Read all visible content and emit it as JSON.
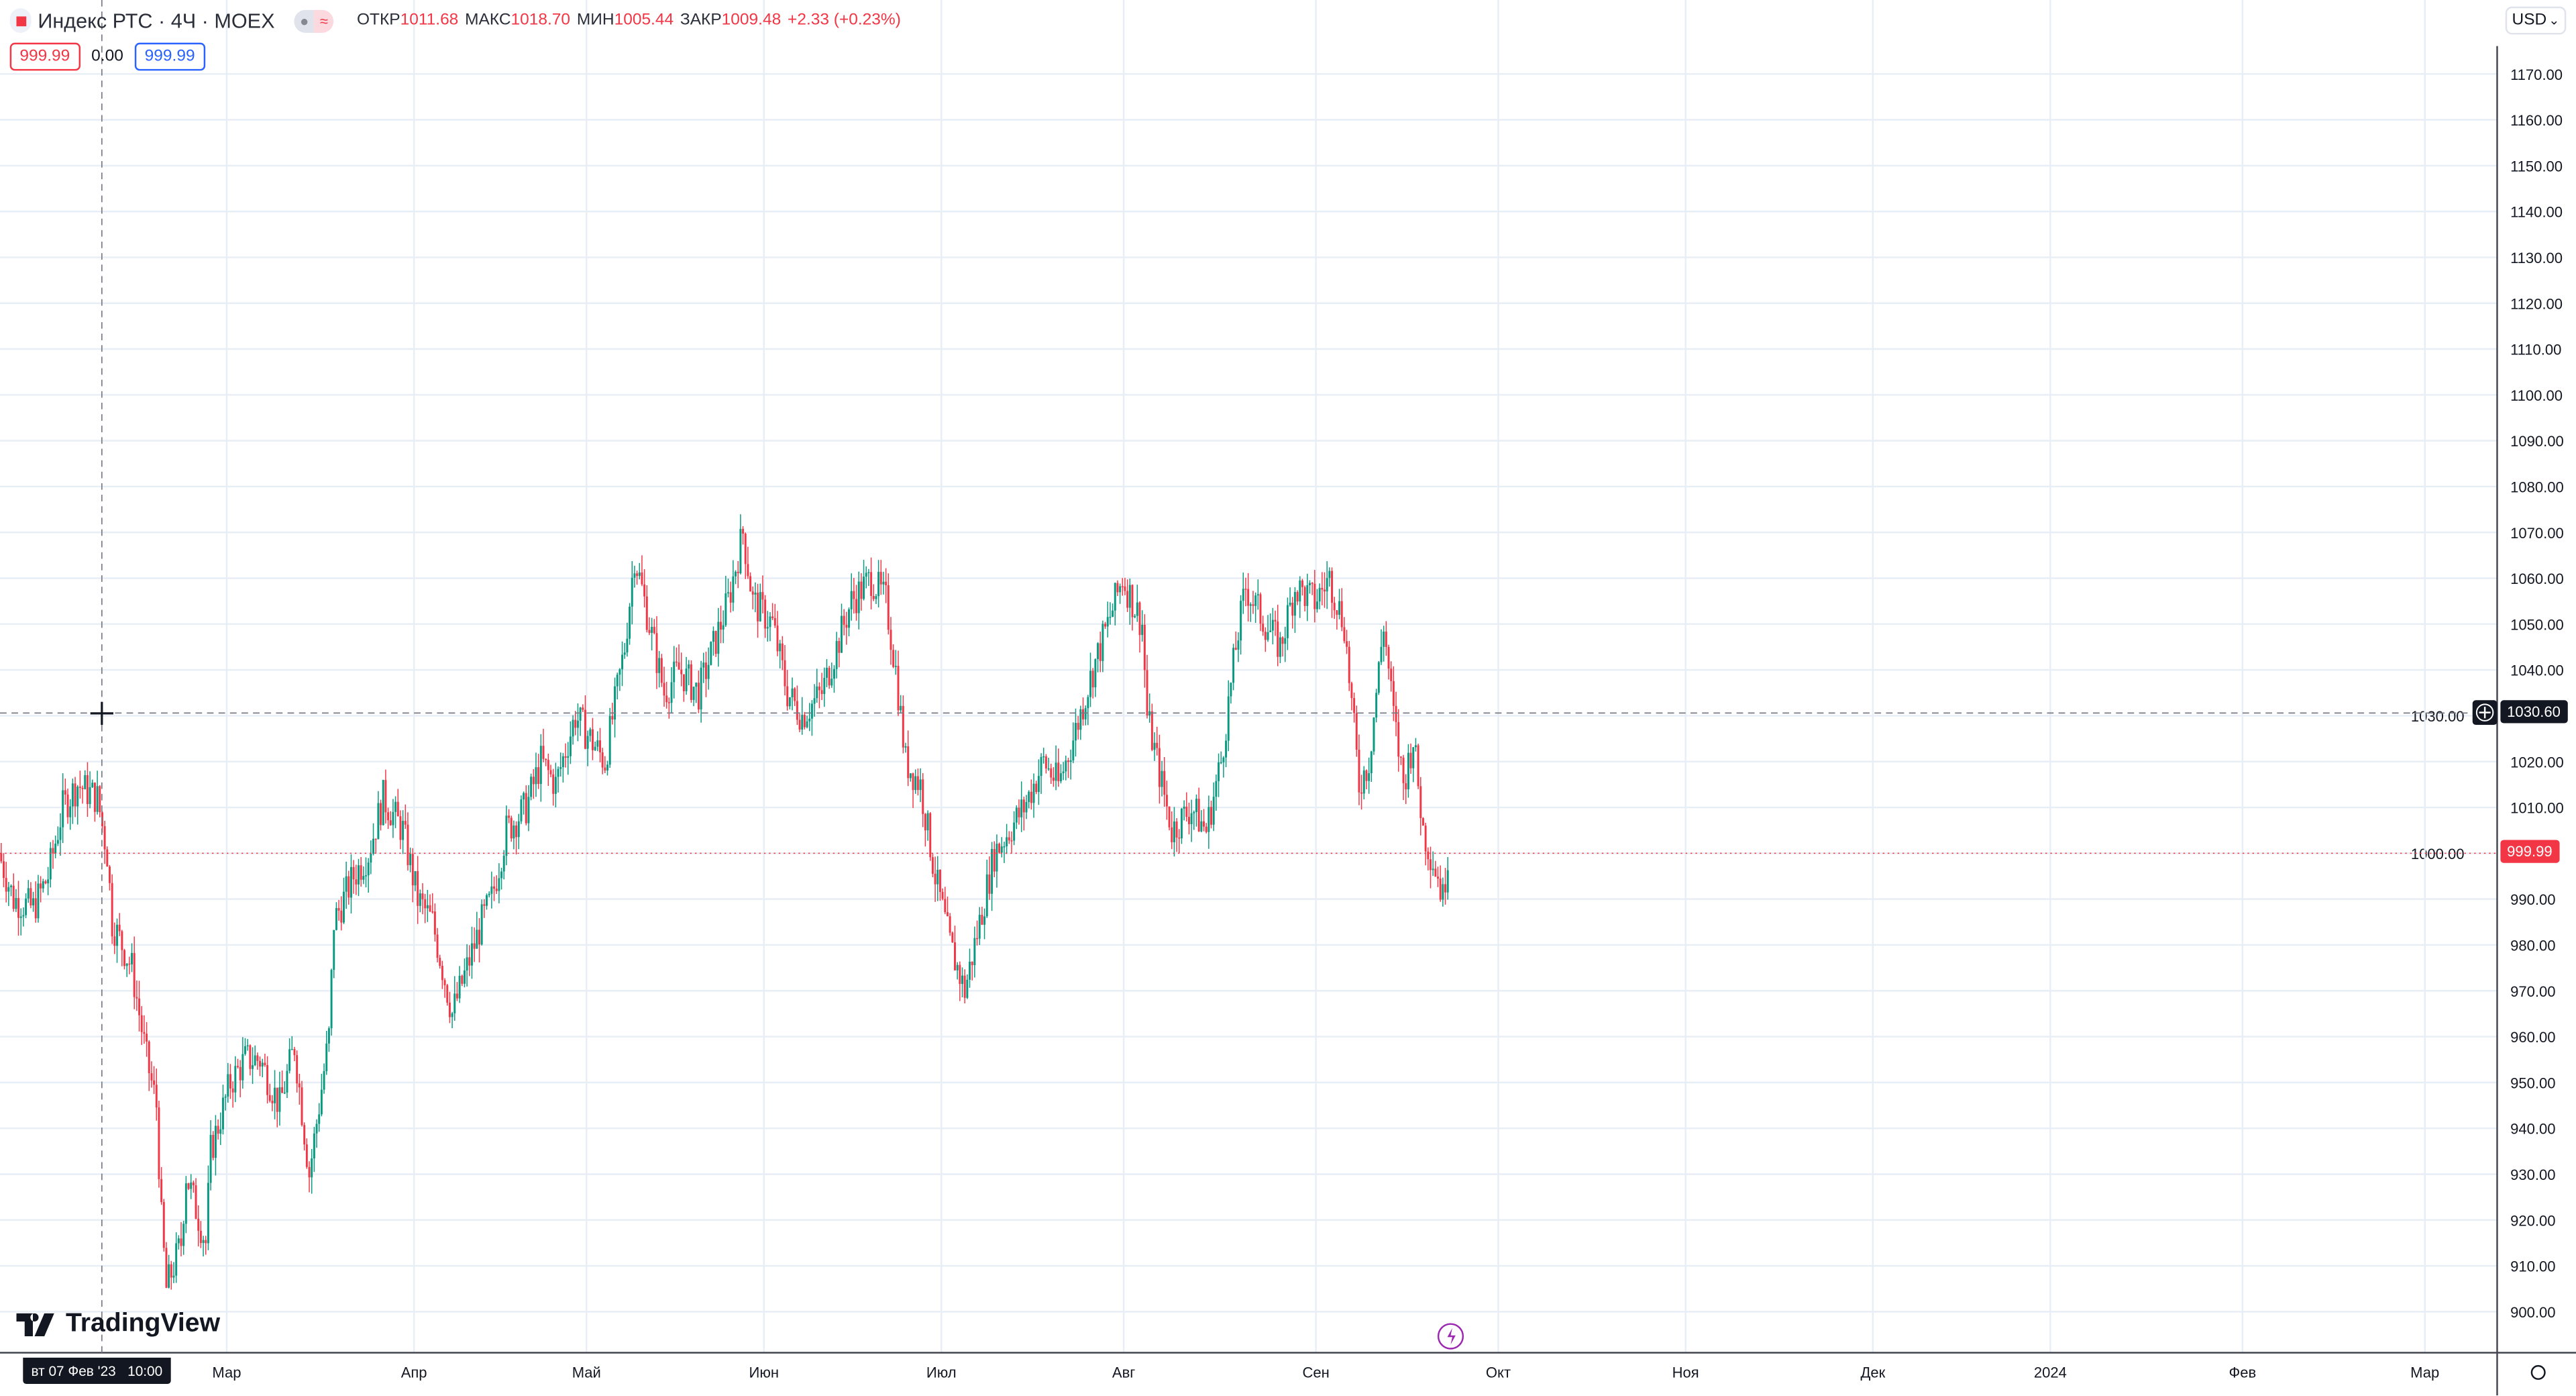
{
  "header": {
    "symbol_title": "Индекс РТС · 4Ч · MOEX",
    "open_label": "ОТКР",
    "open": "1011.68",
    "high_label": "МАКС",
    "high": "1018.70",
    "low_label": "МИН",
    "low": "1005.44",
    "close_label": "ЗАКР",
    "close": "1009.48",
    "change": "+2.33 (+0.23%)",
    "sell_price": "999.99",
    "spread": "0.00",
    "buy_price": "999.99"
  },
  "currency": {
    "value": "USD"
  },
  "crosshair": {
    "date_label": "вт 07 Фев '23   10:00",
    "price_label": "1030.60"
  },
  "last_price_label": "999.99",
  "logo": "TradingView",
  "colors": {
    "up": "#089981",
    "down": "#f23645",
    "grid": "#e8eef5"
  },
  "chart_data": {
    "type": "candlestick",
    "title": "Индекс РТС · 4Ч · MOEX",
    "y_ticks": [
      "1170.00",
      "1160.00",
      "1150.00",
      "1140.00",
      "1130.00",
      "1120.00",
      "1110.00",
      "1100.00",
      "1090.00",
      "1080.00",
      "1070.00",
      "1060.00",
      "1050.00",
      "1040.00",
      "1030.00",
      "1020.00",
      "1010.00",
      "1000.00",
      "990.00",
      "980.00",
      "970.00",
      "960.00",
      "950.00",
      "940.00",
      "930.00",
      "920.00",
      "910.00",
      "900.00"
    ],
    "ylim": [
      897,
      1175
    ],
    "x_ticks": [
      "Мар",
      "Апр",
      "Май",
      "Июн",
      "Июл",
      "Авг",
      "Сен",
      "Окт",
      "Ноя",
      "Дек",
      "2024",
      "Фев",
      "Мар"
    ],
    "x_tick_bars": [
      46,
      84,
      119,
      155,
      191,
      228,
      267,
      304,
      342,
      380,
      416,
      455,
      492
    ],
    "xlim_bars": [
      0,
      506
    ],
    "last_price": 999.99,
    "crosshair_price": 1030.6,
    "close_waypoints_bar_price": [
      [
        0,
        1000
      ],
      [
        3,
        990
      ],
      [
        7,
        988
      ],
      [
        10,
        995
      ],
      [
        13,
        1010
      ],
      [
        16,
        1015
      ],
      [
        20,
        1012
      ],
      [
        22,
        1000
      ],
      [
        23,
        985
      ],
      [
        27,
        975
      ],
      [
        30,
        955
      ],
      [
        32,
        945
      ],
      [
        33,
        920
      ],
      [
        34,
        905
      ],
      [
        37,
        915
      ],
      [
        38,
        930
      ],
      [
        42,
        915
      ],
      [
        43,
        935
      ],
      [
        47,
        950
      ],
      [
        50,
        955
      ],
      [
        53,
        955
      ],
      [
        57,
        945
      ],
      [
        60,
        958
      ],
      [
        63,
        930
      ],
      [
        65,
        945
      ],
      [
        67,
        960
      ],
      [
        68,
        985
      ],
      [
        72,
        995
      ],
      [
        75,
        1000
      ],
      [
        78,
        1012
      ],
      [
        82,
        1005
      ],
      [
        85,
        990
      ],
      [
        88,
        985
      ],
      [
        90,
        975
      ],
      [
        92,
        965
      ],
      [
        95,
        975
      ],
      [
        98,
        985
      ],
      [
        100,
        990
      ],
      [
        103,
        1005
      ],
      [
        107,
        1010
      ],
      [
        110,
        1020
      ],
      [
        113,
        1015
      ],
      [
        117,
        1030
      ],
      [
        120,
        1025
      ],
      [
        123,
        1020
      ],
      [
        127,
        1045
      ],
      [
        129,
        1065
      ],
      [
        132,
        1050
      ],
      [
        135,
        1035
      ],
      [
        138,
        1040
      ],
      [
        142,
        1035
      ],
      [
        145,
        1045
      ],
      [
        148,
        1055
      ],
      [
        151,
        1070
      ],
      [
        153,
        1055
      ],
      [
        157,
        1050
      ],
      [
        160,
        1035
      ],
      [
        163,
        1030
      ],
      [
        167,
        1035
      ],
      [
        170,
        1045
      ],
      [
        173,
        1055
      ],
      [
        177,
        1060
      ],
      [
        180,
        1055
      ],
      [
        182,
        1040
      ],
      [
        184,
        1020
      ],
      [
        187,
        1015
      ],
      [
        190,
        995
      ],
      [
        193,
        980
      ],
      [
        196,
        970
      ],
      [
        198,
        980
      ],
      [
        202,
        1000
      ],
      [
        205,
        1005
      ],
      [
        208,
        1010
      ],
      [
        212,
        1020
      ],
      [
        215,
        1015
      ],
      [
        218,
        1025
      ],
      [
        222,
        1040
      ],
      [
        225,
        1050
      ],
      [
        228,
        1060
      ],
      [
        232,
        1050
      ],
      [
        233,
        1030
      ],
      [
        235,
        1020
      ],
      [
        238,
        1005
      ],
      [
        242,
        1010
      ],
      [
        245,
        1005
      ],
      [
        248,
        1020
      ],
      [
        251,
        1045
      ],
      [
        253,
        1058
      ],
      [
        257,
        1050
      ],
      [
        260,
        1045
      ],
      [
        263,
        1058
      ],
      [
        267,
        1055
      ],
      [
        270,
        1060
      ],
      [
        273,
        1050
      ],
      [
        276,
        1015
      ],
      [
        278,
        1020
      ],
      [
        281,
        1050
      ],
      [
        283,
        1030
      ],
      [
        285,
        1015
      ],
      [
        287,
        1025
      ],
      [
        289,
        1005
      ],
      [
        292,
        995
      ],
      [
        293,
        990
      ],
      [
        294,
        1000
      ]
    ]
  }
}
